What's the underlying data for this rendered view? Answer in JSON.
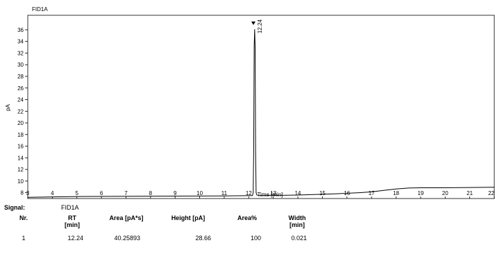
{
  "chart_data": {
    "type": "line",
    "title": "FID1A",
    "xlabel": "Time [min]",
    "ylabel": "pA",
    "xlim": [
      3,
      22
    ],
    "ylim": [
      7,
      38.5
    ],
    "xticks": [
      "3",
      "4",
      "5",
      "6",
      "7",
      "8",
      "9",
      "10",
      "11",
      "12",
      "13",
      "14",
      "15",
      "16",
      "17",
      "18",
      "19",
      "20",
      "21",
      "22"
    ],
    "yticks": [
      "8",
      "10",
      "12",
      "14",
      "16",
      "18",
      "20",
      "22",
      "24",
      "26",
      "28",
      "30",
      "32",
      "34",
      "36"
    ],
    "series": [
      {
        "x": [
          3.0,
          5.0,
          8.0,
          11.0,
          12.15,
          12.18,
          12.2,
          12.22,
          12.24,
          12.26,
          12.28,
          12.3,
          12.33,
          12.45,
          14.0,
          15.5,
          16.5,
          17.0,
          17.5,
          18.0,
          18.5,
          19.0,
          20.0,
          21.0,
          22.0
        ],
        "y": [
          7.2,
          7.35,
          7.4,
          7.45,
          7.5,
          8.0,
          15.0,
          33.0,
          36.1,
          33.0,
          15.0,
          8.0,
          7.6,
          7.5,
          7.6,
          7.8,
          8.0,
          8.15,
          8.4,
          8.65,
          8.8,
          8.85,
          8.85,
          8.9,
          8.95
        ]
      }
    ],
    "annotations": [
      {
        "x": 12.24,
        "y": 36.1,
        "text": "12.24"
      }
    ],
    "grid": false,
    "color": "#000000"
  },
  "results": {
    "signal_label": "Signal:",
    "signal_value": "FID1A",
    "headers": [
      {
        "line1": "Nr.",
        "line2": ""
      },
      {
        "line1": "RT",
        "line2": "[min]"
      },
      {
        "line1": "Area [pA*s]",
        "line2": ""
      },
      {
        "line1": "Height [pA]",
        "line2": ""
      },
      {
        "line1": "Area%",
        "line2": ""
      },
      {
        "line1": "Width",
        "line2": "[min]"
      }
    ],
    "rows": [
      {
        "nr": "1",
        "rt": "12.24",
        "area": "40.25893",
        "height": "28.66",
        "area_pct": "100",
        "width": "0.021"
      }
    ]
  }
}
